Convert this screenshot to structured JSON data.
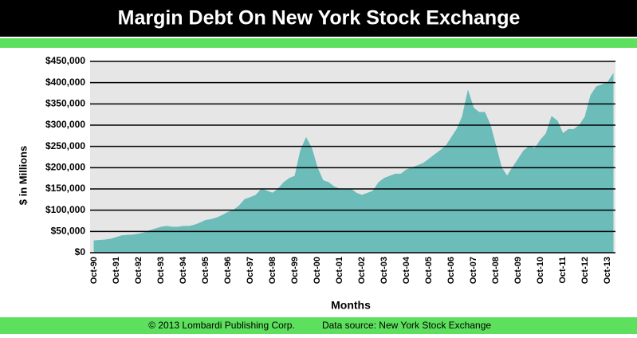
{
  "chart_data": {
    "type": "area",
    "title": "Margin Debt On New York Stock Exchange",
    "y_label": "$ in Millions",
    "x_label": "Months",
    "footer_copyright": "© 2013 Lombardi Publishing Corp.",
    "footer_source": "Data source: New York Stock Exchange",
    "color": "#6cbcba",
    "grid": true,
    "ylim": [
      0,
      450000
    ],
    "yticks": [
      {
        "value": 0,
        "label": "$0"
      },
      {
        "value": 50000,
        "label": "$50,000"
      },
      {
        "value": 100000,
        "label": "$100,000"
      },
      {
        "value": 150000,
        "label": "$150,000"
      },
      {
        "value": 200000,
        "label": "$200,000"
      },
      {
        "value": 250000,
        "label": "$250,000"
      },
      {
        "value": 300000,
        "label": "$300,000"
      },
      {
        "value": 350000,
        "label": "$350,000"
      },
      {
        "value": 400000,
        "label": "$400,000"
      },
      {
        "value": 450000,
        "label": "$450,000"
      }
    ],
    "categories": [
      "Oct-90",
      null,
      null,
      null,
      "Oct-91",
      null,
      null,
      null,
      "Oct-92",
      null,
      null,
      null,
      "Oct-93",
      null,
      null,
      null,
      "Oct-94",
      null,
      null,
      null,
      "Oct-95",
      null,
      null,
      null,
      "Oct-96",
      null,
      null,
      null,
      "Oct-97",
      null,
      null,
      null,
      "Oct-98",
      null,
      null,
      null,
      "Oct-99",
      null,
      null,
      null,
      "Oct-00",
      null,
      null,
      null,
      "Oct-01",
      null,
      null,
      null,
      "Oct-02",
      null,
      null,
      null,
      "Oct-03",
      null,
      null,
      null,
      "Oct-04",
      null,
      null,
      null,
      "Oct-05",
      null,
      null,
      null,
      "Oct-06",
      null,
      null,
      null,
      "Oct-07",
      null,
      null,
      null,
      "Oct-08",
      null,
      null,
      null,
      "Oct-09",
      null,
      null,
      null,
      "Oct-10",
      null,
      null,
      null,
      "Oct-11",
      null,
      null,
      null,
      "Oct-12",
      null,
      null,
      null,
      "Oct-13",
      null
    ],
    "values": [
      28000,
      29000,
      30000,
      32000,
      36000,
      40000,
      41000,
      42000,
      44000,
      47000,
      52000,
      56000,
      60000,
      62000,
      60000,
      60000,
      62000,
      62000,
      65000,
      70000,
      76000,
      78000,
      82000,
      88000,
      95000,
      100000,
      110000,
      125000,
      130000,
      135000,
      150000,
      145000,
      140000,
      150000,
      165000,
      175000,
      180000,
      240000,
      270000,
      245000,
      200000,
      170000,
      165000,
      155000,
      150000,
      150000,
      150000,
      140000,
      135000,
      140000,
      145000,
      165000,
      175000,
      180000,
      185000,
      185000,
      195000,
      200000,
      205000,
      210000,
      220000,
      230000,
      240000,
      250000,
      270000,
      290000,
      320000,
      380000,
      340000,
      330000,
      330000,
      300000,
      250000,
      200000,
      180000,
      200000,
      220000,
      240000,
      250000,
      245000,
      265000,
      280000,
      320000,
      310000,
      280000,
      290000,
      290000,
      300000,
      320000,
      370000,
      390000,
      395000,
      400000,
      420000
    ]
  }
}
